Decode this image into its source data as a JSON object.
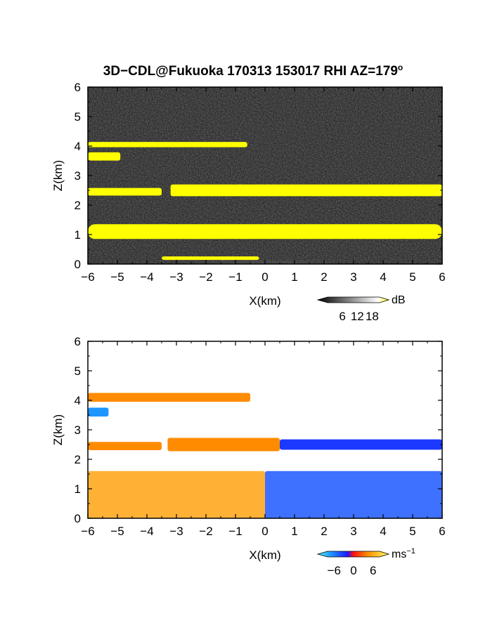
{
  "title_main": "3D−CDL@Fukuoka 170313 153017 RHI AZ=179",
  "title_degree": "o",
  "chart_data": [
    {
      "type": "heatmap",
      "name": "backscatter-intensity",
      "xlabel": "X(km)",
      "ylabel": "Z(km)",
      "xlim": [
        -6,
        6
      ],
      "ylim": [
        0,
        6
      ],
      "xticks": [
        -6,
        -5,
        -4,
        -3,
        -2,
        -1,
        0,
        1,
        2,
        3,
        4,
        5,
        6
      ],
      "yticks": [
        0,
        1,
        2,
        3,
        4,
        5,
        6
      ],
      "colorbar": {
        "unit": "dB",
        "ticks": [
          "6",
          "12",
          "18"
        ],
        "range": [
          0,
          21
        ]
      },
      "layers": [
        {
          "feature": "aerosol layer",
          "x": [
            -6,
            -0.6
          ],
          "z_center": 4.05,
          "thickness": 0.18,
          "level_dB": 21
        },
        {
          "feature": "aerosol layer",
          "x": [
            -6,
            -4.9
          ],
          "z_center": 3.65,
          "thickness": 0.28,
          "level_dB": 21
        },
        {
          "feature": "aerosol layer",
          "x": [
            -6,
            -3.5
          ],
          "z_center": 2.45,
          "thickness": 0.26,
          "level_dB": 21
        },
        {
          "feature": "aerosol layer",
          "x": [
            -3.2,
            6
          ],
          "z_center": 2.5,
          "thickness": 0.4,
          "level_dB": 21
        },
        {
          "feature": "boundary layer top",
          "x": [
            -6,
            6
          ],
          "z_center": 1.1,
          "thickness": 0.5,
          "level_dB": 21
        },
        {
          "feature": "near-ground return",
          "x": [
            -3.5,
            -0.2
          ],
          "z_center": 0.2,
          "thickness": 0.12,
          "level_dB": 21
        }
      ]
    },
    {
      "type": "heatmap",
      "name": "radial-velocity",
      "xlabel": "X(km)",
      "ylabel": "Z(km)",
      "xlim": [
        -6,
        6
      ],
      "ylim": [
        0,
        6
      ],
      "xticks": [
        -6,
        -5,
        -4,
        -3,
        -2,
        -1,
        0,
        1,
        2,
        3,
        4,
        5,
        6
      ],
      "yticks": [
        0,
        1,
        2,
        3,
        4,
        5,
        6
      ],
      "colorbar": {
        "unit": "ms",
        "unit_exponent": "−1",
        "ticks": [
          "−6",
          "0",
          "6"
        ],
        "range": [
          -8,
          8
        ]
      },
      "layers": [
        {
          "feature": "layer",
          "x": [
            -6,
            -0.5
          ],
          "z_center": 4.1,
          "thickness": 0.3,
          "velocity": 3
        },
        {
          "feature": "layer",
          "x": [
            -6,
            -5.3
          ],
          "z_center": 3.6,
          "thickness": 0.3,
          "velocity": -5
        },
        {
          "feature": "layer",
          "x": [
            -6,
            -3.5
          ],
          "z_center": 2.45,
          "thickness": 0.28,
          "velocity": 3
        },
        {
          "feature": "layer",
          "x": [
            -3.3,
            0.5
          ],
          "z_center": 2.5,
          "thickness": 0.45,
          "velocity": 3
        },
        {
          "feature": "layer",
          "x": [
            0.5,
            6
          ],
          "z_center": 2.5,
          "thickness": 0.35,
          "velocity": -2
        },
        {
          "feature": "boundary layer",
          "x": [
            -6,
            0
          ],
          "z_center": 0.8,
          "thickness": 1.6,
          "velocity": 4
        },
        {
          "feature": "boundary layer",
          "x": [
            0,
            6
          ],
          "z_center": 0.8,
          "thickness": 1.6,
          "velocity": -3
        }
      ]
    }
  ]
}
